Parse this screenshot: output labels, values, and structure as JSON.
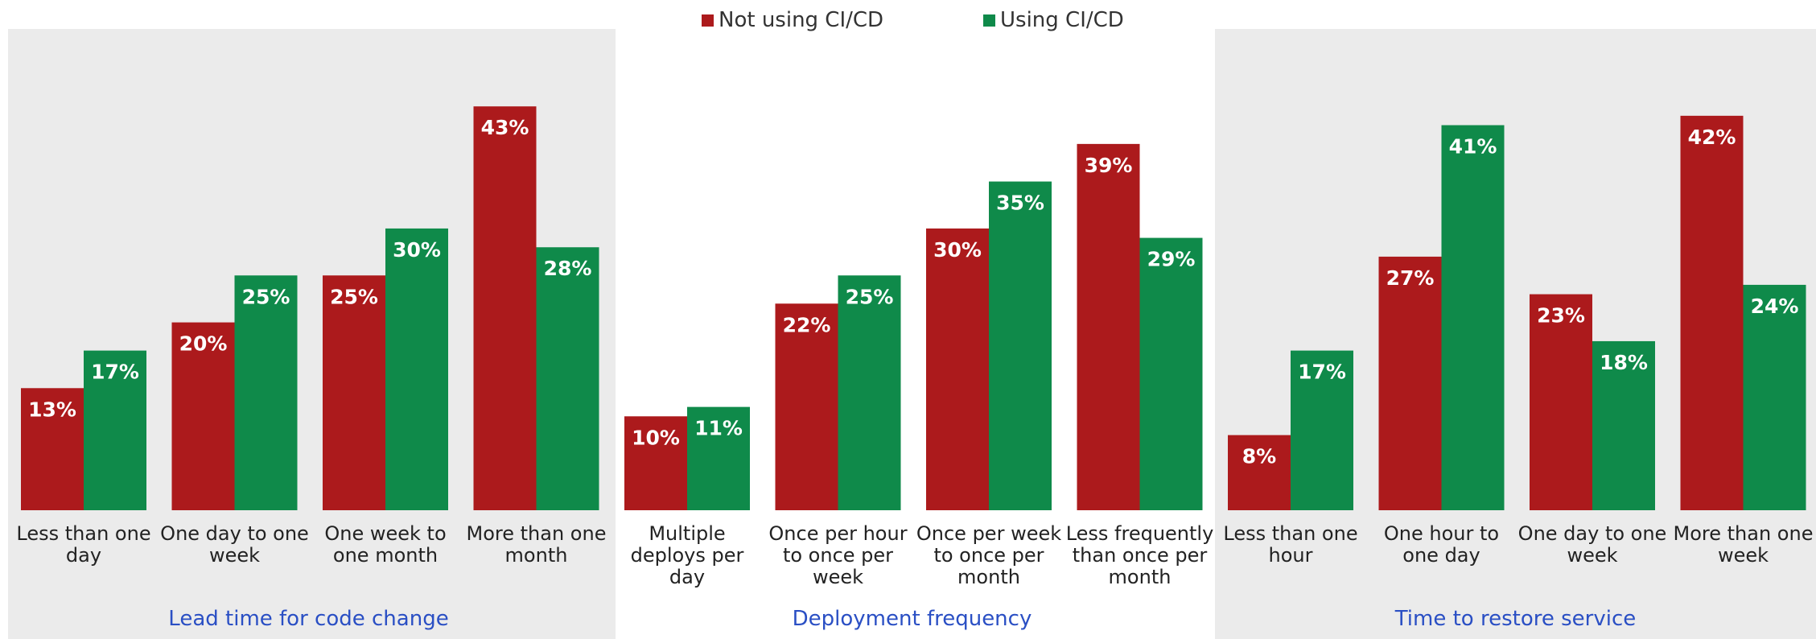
{
  "legend": [
    {
      "name": "Not using CI/CD",
      "color": "#ac1a1c"
    },
    {
      "name": "Using CI/CD",
      "color": "#0f8a4a"
    }
  ],
  "chart_data": [
    {
      "type": "bar",
      "title": "Lead time for code change",
      "categories": [
        "Less than one day",
        "One day to one week",
        "One week to one month",
        "More than one month"
      ],
      "series": [
        {
          "values": [
            13,
            20,
            25,
            43
          ],
          "value_labels": [
            "13%",
            "20%",
            "25%",
            "43%"
          ]
        },
        {
          "values": [
            17,
            25,
            30,
            28
          ],
          "value_labels": [
            "17%",
            "25%",
            "30%",
            "28%"
          ]
        }
      ]
    },
    {
      "type": "bar",
      "title": "Deployment frequency",
      "categories": [
        "Multiple deploys per day",
        "Once per hour to once per week",
        "Once per week to once per month",
        "Less frequently than once per month"
      ],
      "series": [
        {
          "values": [
            10,
            22,
            30,
            39
          ],
          "value_labels": [
            "10%",
            "22%",
            "30%",
            "39%"
          ]
        },
        {
          "values": [
            11,
            25,
            35,
            29
          ],
          "value_labels": [
            "11%",
            "25%",
            "35%",
            "29%"
          ]
        }
      ]
    },
    {
      "type": "bar",
      "title": "Time to restore service",
      "categories": [
        "Less than one hour",
        "One hour to one day",
        "One day to one week",
        "More than one week"
      ],
      "series": [
        {
          "values": [
            8,
            27,
            23,
            42
          ],
          "value_labels": [
            "8%",
            "27%",
            "23%",
            "42%"
          ]
        },
        {
          "values": [
            17,
            41,
            18,
            24
          ],
          "value_labels": [
            "17%",
            "41%",
            "18%",
            "24%"
          ]
        }
      ]
    }
  ]
}
